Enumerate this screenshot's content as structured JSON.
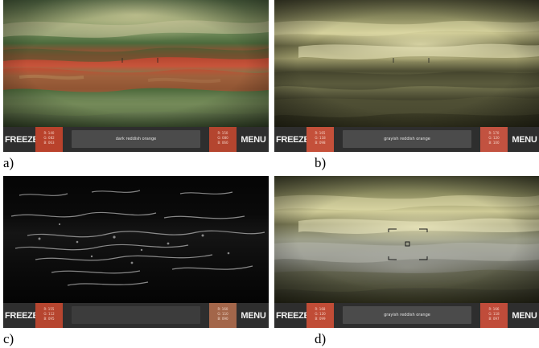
{
  "panels": [
    {
      "caption": "a)",
      "freeze_label": "FREEZE",
      "menu_label": "MENU",
      "color_name": "dark reddish orange",
      "swatch_left_color": "#b9422c",
      "swatch_right_color": "#b4452f",
      "swatch_left_lines": [
        "R: 140",
        "G: 082",
        "B: 063"
      ],
      "swatch_right_lines": [
        "R: 150",
        "G: 080",
        "B: 060"
      ]
    },
    {
      "caption": "b)",
      "freeze_label": "FREEZE",
      "menu_label": "MENU",
      "color_name": "grayish reddish orange",
      "swatch_left_color": "#c4503a",
      "swatch_right_color": "#c25240",
      "swatch_left_lines": [
        "R: 165",
        "G: 118",
        "B: 098"
      ],
      "swatch_right_lines": [
        "R: 170",
        "G: 120",
        "B: 100"
      ]
    },
    {
      "caption": "c)",
      "freeze_label": "FREEZE",
      "menu_label": "MENU",
      "color_name": "",
      "swatch_left_color": "#b6452f",
      "swatch_right_color": "#a3664a",
      "swatch_left_lines": [
        "R: 155",
        "G: 112",
        "B: 095"
      ],
      "swatch_right_lines": [
        "R: 160",
        "G: 110",
        "B: 090"
      ]
    },
    {
      "caption": "d)",
      "freeze_label": "FREEZE",
      "menu_label": "MENU",
      "color_name": "grayish reddish orange",
      "swatch_left_color": "#c04c36",
      "swatch_right_color": "#c04c3a",
      "swatch_left_lines": [
        "R: 168",
        "G: 120",
        "B: 099"
      ],
      "swatch_right_lines": [
        "R: 166",
        "G: 118",
        "B: 097"
      ]
    }
  ]
}
